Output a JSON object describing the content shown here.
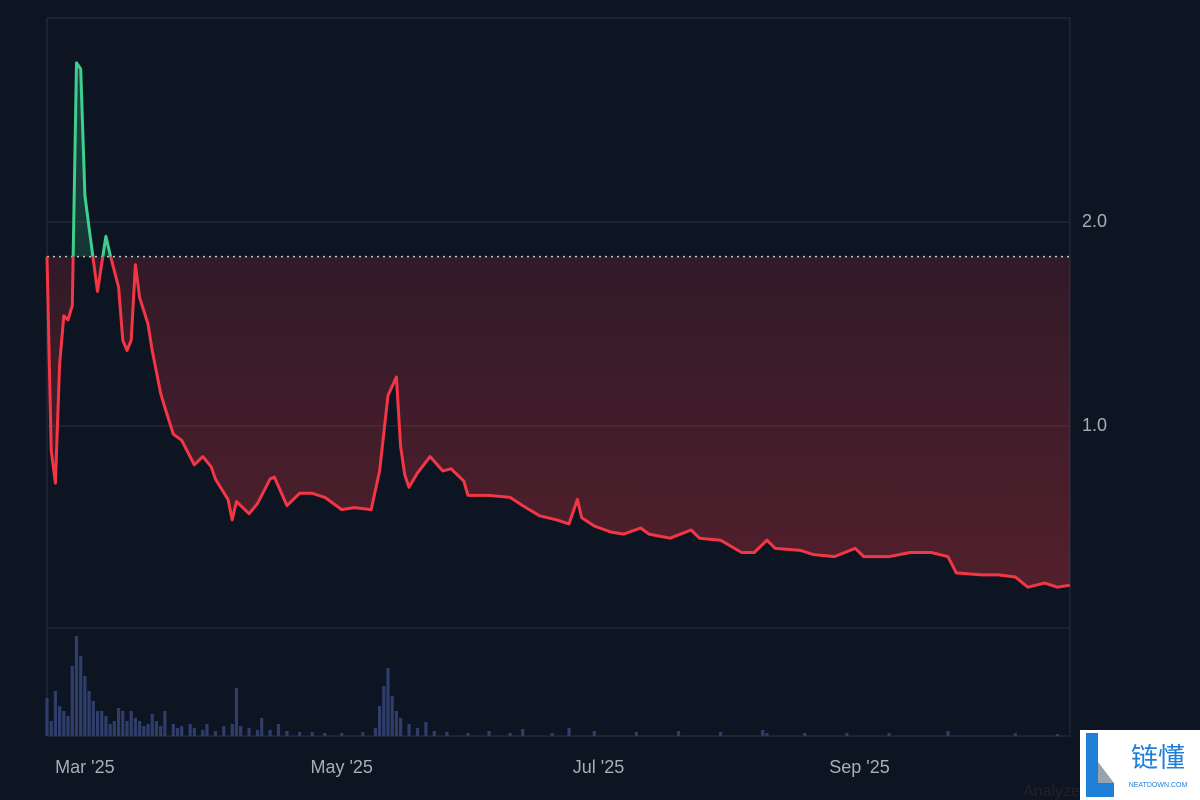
{
  "chart_data": {
    "type": "baseline-line",
    "x": [
      0,
      1,
      2,
      3,
      4,
      5,
      6,
      7,
      8,
      9,
      10,
      12,
      14,
      15,
      17,
      18,
      19,
      20,
      21,
      22,
      24,
      25,
      27,
      28,
      30,
      32,
      35,
      37,
      39,
      40,
      43,
      44,
      45,
      48,
      50,
      53,
      54,
      57,
      60,
      63,
      66,
      70,
      73,
      77,
      79,
      81,
      83,
      84,
      85,
      86,
      88,
      91,
      94,
      96,
      99,
      100,
      105,
      110,
      113,
      117,
      121,
      124,
      126,
      127,
      130,
      134,
      137,
      141,
      143,
      148,
      153,
      155,
      160,
      165,
      168,
      171,
      173,
      179,
      182,
      187,
      192,
      194,
      200,
      205,
      210,
      214,
      216,
      222,
      226,
      230,
      233,
      237,
      240,
      243
    ],
    "values": [
      1.83,
      0.88,
      0.72,
      1.3,
      1.54,
      1.52,
      1.59,
      2.78,
      2.75,
      2.13,
      1.97,
      1.66,
      1.93,
      1.84,
      1.68,
      1.42,
      1.37,
      1.42,
      1.79,
      1.63,
      1.5,
      1.37,
      1.16,
      1.09,
      0.96,
      0.93,
      0.81,
      0.85,
      0.8,
      0.74,
      0.64,
      0.54,
      0.63,
      0.57,
      0.62,
      0.74,
      0.75,
      0.61,
      0.67,
      0.67,
      0.65,
      0.59,
      0.6,
      0.59,
      0.78,
      1.15,
      1.24,
      0.9,
      0.76,
      0.7,
      0.77,
      0.85,
      0.78,
      0.79,
      0.73,
      0.66,
      0.66,
      0.65,
      0.61,
      0.56,
      0.54,
      0.52,
      0.64,
      0.55,
      0.51,
      0.48,
      0.47,
      0.5,
      0.47,
      0.45,
      0.49,
      0.45,
      0.44,
      0.38,
      0.38,
      0.44,
      0.4,
      0.39,
      0.37,
      0.36,
      0.4,
      0.36,
      0.36,
      0.38,
      0.38,
      0.36,
      0.28,
      0.27,
      0.27,
      0.26,
      0.21,
      0.23,
      0.21,
      0.22
    ],
    "baseline": 1.83,
    "up_color": "#3ecf8e",
    "down_color": "#f23645",
    "xlim": [
      0,
      243
    ],
    "xticks": [
      {
        "value": 9,
        "label": "Mar '25"
      },
      {
        "value": 70,
        "label": "May '25"
      },
      {
        "value": 131,
        "label": "Jul '25"
      },
      {
        "value": 193,
        "label": "Sep '25"
      }
    ],
    "ylim": [
      0,
      3.0
    ],
    "yticks": [
      {
        "value": 1,
        "label": "1.0"
      },
      {
        "value": 2,
        "label": "2.0"
      }
    ],
    "grid": true,
    "volume": {
      "color": "#2f3d6b",
      "x": [
        0,
        1,
        2,
        3,
        4,
        5,
        6,
        7,
        8,
        9,
        10,
        11,
        12,
        13,
        14,
        15,
        16,
        17,
        18,
        19,
        20,
        21,
        22,
        23,
        24,
        25,
        26,
        27,
        28,
        30,
        31,
        32,
        34,
        35,
        37,
        38,
        40,
        42,
        44,
        45,
        46,
        48,
        50,
        51,
        53,
        55,
        57,
        60,
        63,
        66,
        70,
        75,
        78,
        79,
        80,
        81,
        82,
        83,
        84,
        86,
        88,
        90,
        92,
        95,
        100,
        105,
        110,
        113,
        120,
        124,
        130,
        140,
        150,
        160,
        170,
        171,
        180,
        190,
        200,
        214,
        230,
        240
      ],
      "values": [
        38,
        15,
        45,
        30,
        25,
        20,
        70,
        100,
        80,
        60,
        45,
        35,
        25,
        25,
        20,
        12,
        15,
        28,
        25,
        15,
        25,
        18,
        15,
        10,
        12,
        22,
        15,
        10,
        25,
        12,
        8,
        10,
        12,
        8,
        6,
        12,
        5,
        10,
        12,
        48,
        10,
        8,
        6,
        18,
        6,
        12,
        5,
        4,
        4,
        3,
        3,
        4,
        8,
        30,
        50,
        68,
        40,
        25,
        18,
        12,
        8,
        14,
        5,
        4,
        3,
        5,
        3,
        7,
        3,
        8,
        5,
        4,
        5,
        4,
        6,
        3,
        3,
        3,
        3,
        5,
        3,
        2
      ],
      "ylim": [
        0,
        100
      ]
    }
  },
  "footer_link": "Analyze",
  "watermark": {
    "title": "链懂",
    "subtitle": "NEATDOWN.COM"
  }
}
